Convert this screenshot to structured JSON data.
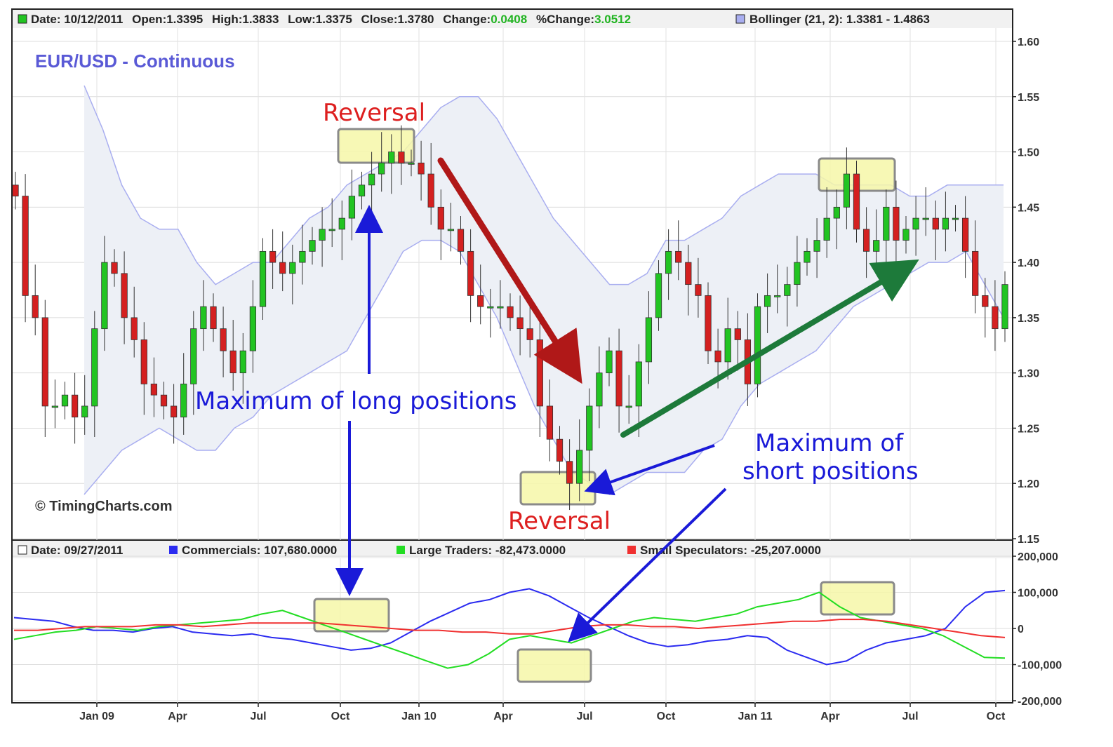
{
  "price_panel": {
    "header": {
      "date": "Date: 10/12/2011",
      "open": "Open:1.3395",
      "high": "High:1.3833",
      "low": "Low:1.3375",
      "close": "Close:1.3780",
      "change_label": "Change:",
      "change_value": "0.0408",
      "pct_label": "%Change:",
      "pct_value": "3.0512",
      "bollinger": "Bollinger (21, 2): 1.3381 - 1.4863"
    },
    "title": "EUR/USD - Continuous",
    "copyright": "© TimingCharts.com"
  },
  "cot_panel": {
    "header": {
      "date": "Date: 09/27/2011",
      "commercials": "Commercials: 107,680.0000",
      "large_traders": "Large Traders: -82,473.0000",
      "small_speculators": "Small Speculators: -25,207.0000"
    }
  },
  "annotations": {
    "reversal_top": "Reversal",
    "reversal_bottom": "Reversal",
    "max_long": "Maximum of long positions",
    "max_short_line1": "Maximum of",
    "max_short_line2": "short positions"
  },
  "colors": {
    "up_candle": "#22c422",
    "down_candle": "#d42020",
    "bollinger_band": "#a9aef0",
    "bollinger_fill": "#edf0f6",
    "commercials": "#2b2bf0",
    "large_traders": "#22dd22",
    "small_speculators": "#f03030",
    "highlight": "#f6f7a8",
    "arrow_red": "#b01818",
    "arrow_green": "#1d7a3a",
    "arrow_blue": "#1a1ad8"
  },
  "chart_data": [
    {
      "type": "candlestick",
      "title": "EUR/USD - Continuous",
      "ylim": [
        1.15,
        1.6
      ],
      "y_ticks": [
        "1.15",
        "1.20",
        "1.25",
        "1.30",
        "1.35",
        "1.40",
        "1.45",
        "1.50",
        "1.55",
        "1.60"
      ],
      "x_ticks": [
        "Jan 09",
        "Apr",
        "Jul",
        "Oct",
        "Jan 10",
        "Apr",
        "Jul",
        "Oct",
        "Jan 11",
        "Apr",
        "Jul",
        "Oct"
      ],
      "grid": true,
      "x_start": "2008-10",
      "x_end": "2011-10",
      "closes": [
        1.46,
        1.37,
        1.35,
        1.27,
        1.27,
        1.28,
        1.26,
        1.27,
        1.34,
        1.4,
        1.39,
        1.35,
        1.33,
        1.29,
        1.28,
        1.27,
        1.26,
        1.29,
        1.34,
        1.36,
        1.34,
        1.32,
        1.3,
        1.32,
        1.36,
        1.41,
        1.4,
        1.39,
        1.4,
        1.41,
        1.42,
        1.43,
        1.43,
        1.44,
        1.46,
        1.47,
        1.48,
        1.49,
        1.5,
        1.49,
        1.49,
        1.48,
        1.45,
        1.43,
        1.43,
        1.41,
        1.37,
        1.36,
        1.36,
        1.36,
        1.35,
        1.34,
        1.33,
        1.27,
        1.24,
        1.22,
        1.2,
        1.23,
        1.27,
        1.3,
        1.32,
        1.27,
        1.27,
        1.31,
        1.35,
        1.39,
        1.41,
        1.4,
        1.38,
        1.37,
        1.32,
        1.31,
        1.34,
        1.33,
        1.29,
        1.36,
        1.37,
        1.37,
        1.38,
        1.4,
        1.41,
        1.42,
        1.44,
        1.45,
        1.48,
        1.43,
        1.41,
        1.42,
        1.45,
        1.42,
        1.43,
        1.44,
        1.44,
        1.43,
        1.44,
        1.44,
        1.41,
        1.37,
        1.36,
        1.34,
        1.38
      ],
      "bollinger_upper": [
        1.56,
        1.52,
        1.47,
        1.44,
        1.43,
        1.43,
        1.4,
        1.38,
        1.39,
        1.4,
        1.4,
        1.42,
        1.44,
        1.45,
        1.47,
        1.48,
        1.49,
        1.5,
        1.52,
        1.54,
        1.55,
        1.55,
        1.53,
        1.5,
        1.47,
        1.44,
        1.42,
        1.4,
        1.38,
        1.38,
        1.39,
        1.42,
        1.42,
        1.43,
        1.44,
        1.46,
        1.47,
        1.48,
        1.48,
        1.48,
        1.47,
        1.47,
        1.47,
        1.47,
        1.46,
        1.46,
        1.47,
        1.47,
        1.47,
        1.47
      ],
      "bollinger_lower": [
        1.19,
        1.21,
        1.23,
        1.24,
        1.25,
        1.24,
        1.23,
        1.23,
        1.25,
        1.26,
        1.28,
        1.29,
        1.3,
        1.31,
        1.32,
        1.35,
        1.38,
        1.41,
        1.42,
        1.42,
        1.41,
        1.38,
        1.35,
        1.31,
        1.27,
        1.24,
        1.21,
        1.2,
        1.19,
        1.2,
        1.21,
        1.21,
        1.21,
        1.23,
        1.24,
        1.27,
        1.29,
        1.3,
        1.31,
        1.32,
        1.34,
        1.36,
        1.37,
        1.38,
        1.39,
        1.4,
        1.4,
        1.41,
        1.38,
        1.35
      ]
    },
    {
      "type": "line",
      "ylim": [
        -200000,
        200000
      ],
      "y_ticks": [
        "200,000",
        "100,000",
        "0",
        "-100,000",
        "-200,000"
      ],
      "grid": true,
      "series": [
        {
          "name": "Commercials",
          "values": [
            30000,
            25000,
            20000,
            5000,
            -5000,
            -5000,
            -10000,
            0,
            5000,
            -10000,
            -15000,
            -20000,
            -15000,
            -25000,
            -30000,
            -40000,
            -50000,
            -60000,
            -55000,
            -40000,
            -10000,
            20000,
            45000,
            70000,
            80000,
            100000,
            110000,
            90000,
            60000,
            30000,
            5000,
            -20000,
            -40000,
            -50000,
            -45000,
            -35000,
            -30000,
            -20000,
            -25000,
            -60000,
            -80000,
            -100000,
            -90000,
            -60000,
            -40000,
            -30000,
            -20000,
            0,
            60000,
            100000,
            105000
          ]
        },
        {
          "name": "Large Traders",
          "values": [
            -30000,
            -20000,
            -10000,
            -5000,
            5000,
            0,
            -5000,
            5000,
            10000,
            15000,
            20000,
            25000,
            40000,
            50000,
            30000,
            10000,
            -10000,
            -30000,
            -50000,
            -70000,
            -90000,
            -110000,
            -100000,
            -70000,
            -30000,
            -20000,
            -30000,
            -40000,
            -20000,
            0,
            20000,
            30000,
            25000,
            20000,
            30000,
            40000,
            60000,
            70000,
            80000,
            100000,
            60000,
            30000,
            20000,
            10000,
            0,
            -20000,
            -50000,
            -80000,
            -82000
          ]
        },
        {
          "name": "Small Speculators",
          "values": [
            -5000,
            -5000,
            0,
            5000,
            5000,
            5000,
            10000,
            10000,
            5000,
            10000,
            15000,
            15000,
            15000,
            15000,
            10000,
            5000,
            0,
            -5000,
            -5000,
            -10000,
            -10000,
            -15000,
            -15000,
            -5000,
            5000,
            10000,
            10000,
            5000,
            5000,
            0,
            5000,
            10000,
            15000,
            20000,
            20000,
            25000,
            25000,
            20000,
            10000,
            0,
            -10000,
            -20000,
            -25000
          ]
        }
      ]
    }
  ]
}
